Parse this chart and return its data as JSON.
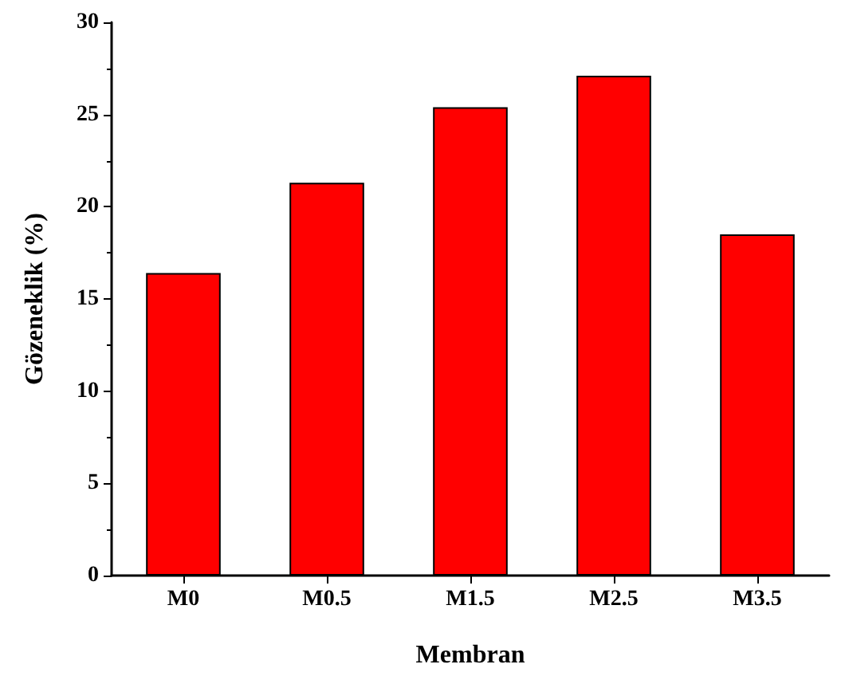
{
  "chart_data": {
    "type": "bar",
    "xlabel": "Membran",
    "ylabel": "Gözeneklik (%)",
    "categories": [
      "M0",
      "M0.5",
      "M1.5",
      "M2.5",
      "M3.5"
    ],
    "values": [
      16.4,
      21.3,
      25.4,
      27.1,
      18.5
    ],
    "color": "#ff0000",
    "ylim": [
      0,
      30
    ],
    "yticks": [
      0,
      5,
      10,
      15,
      20,
      25,
      30
    ],
    "grid": false
  }
}
